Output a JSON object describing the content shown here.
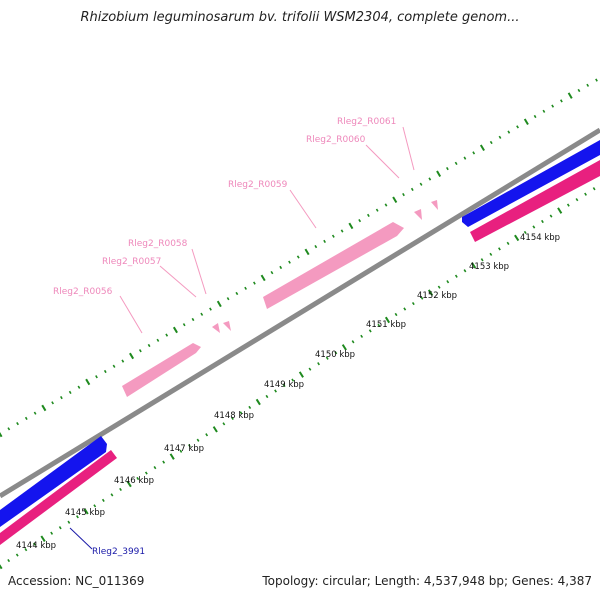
{
  "title": "Rhizobium leguminosarum bv. trifolii WSM2304, complete genom...",
  "footer": {
    "accession": "Accession: NC_011369",
    "summary": "Topology: circular; Length: 4,537,948 bp; Genes: 4,387"
  },
  "colors": {
    "backbone": "#8a8a8a",
    "cds_plus": "#1010ee",
    "cds_minus": "#e8207f",
    "rna": "#f49ac0",
    "tick": "#1f8a1f",
    "rna_label": "#ee88bb",
    "gene_label": "#1a1aa8"
  },
  "kbp_labels": [
    "4144 kbp",
    "4145 kbp",
    "4146 kbp",
    "4147 kbp",
    "4148 kbp",
    "4149 kbp",
    "4150 kbp",
    "4151 kbp",
    "4152 kbp",
    "4153 kbp",
    "4154 kbp"
  ],
  "rna_labels": [
    "Rleg2_R0056",
    "Rleg2_R0057",
    "Rleg2_R0058",
    "Rleg2_R0059",
    "Rleg2_R0060",
    "Rleg2_R0061"
  ],
  "gene_label": "Rleg2_3991"
}
